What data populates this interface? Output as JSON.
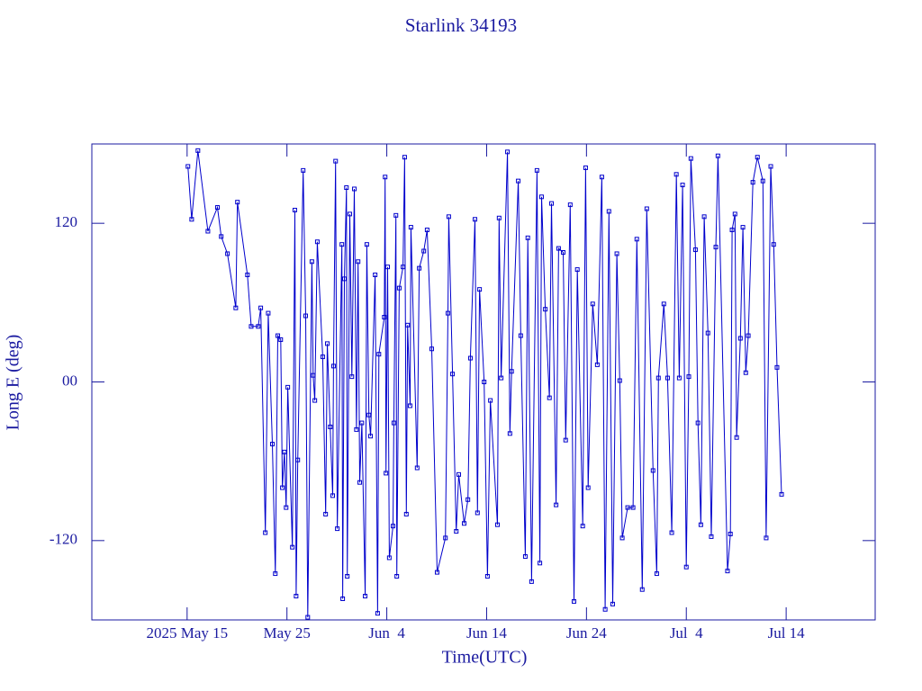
{
  "chart_data": {
    "type": "line",
    "title": "Starlink 34193",
    "xlabel": "Time(UTC)",
    "ylabel": "Long E (deg)",
    "xlim": [
      "2025-05-05T11:00",
      "2025-07-22T22:00"
    ],
    "xticks": [
      {
        "value": "2025-05-15",
        "label": "2025 May 15"
      },
      {
        "value": "2025-05-25",
        "label": "May 25"
      },
      {
        "value": "2025-06-04",
        "label": "Jun  4"
      },
      {
        "value": "2025-06-14",
        "label": "Jun 14"
      },
      {
        "value": "2025-06-24",
        "label": "Jun 24"
      },
      {
        "value": "2025-07-04",
        "label": "Jul  4"
      },
      {
        "value": "2025-07-14",
        "label": "Jul 14"
      }
    ],
    "ylim": [
      -180,
      180
    ],
    "yticks": [
      -120,
      {
        "value": 0,
        "label": "00"
      },
      120
    ],
    "series": [
      {
        "color": "#0000cc",
        "x": [
          "2025-05-15T02:00",
          "2025-05-15T11:00",
          "2025-05-16T02:00",
          "2025-05-17T02:00",
          "2025-05-18T01:00",
          "2025-05-18T10:00",
          "2025-05-19T01:00",
          "2025-05-19T21:00",
          "2025-05-20T01:00",
          "2025-05-21T01:00",
          "2025-05-21T10:00",
          "2025-05-22T03:00",
          "2025-05-22T09:00",
          "2025-05-22T20:00",
          "2025-05-23T03:00",
          "2025-05-23T13:00",
          "2025-05-23T20:00",
          "2025-05-24T02:00",
          "2025-05-24T09:00",
          "2025-05-24T13:00",
          "2025-05-24T18:00",
          "2025-05-24T22:00",
          "2025-05-25T02:00",
          "2025-05-25T13:00",
          "2025-05-25T19:00",
          "2025-05-25T22:00",
          "2025-05-26T02:00",
          "2025-05-26T15:00",
          "2025-05-26T21:00",
          "2025-05-27T02:00",
          "2025-05-27T12:00",
          "2025-05-27T15:00",
          "2025-05-27T19:00",
          "2025-05-28T01:00",
          "2025-05-28T14:00",
          "2025-05-28T21:00",
          "2025-05-29T01:00",
          "2025-05-29T08:00",
          "2025-05-29T14:00",
          "2025-05-29T16:00",
          "2025-05-29T21:00",
          "2025-05-30T01:00",
          "2025-05-30T12:00",
          "2025-05-30T14:00",
          "2025-05-30T18:00",
          "2025-05-30T23:00",
          "2025-05-31T01:00",
          "2025-05-31T07:00",
          "2025-05-31T12:00",
          "2025-05-31T18:00",
          "2025-05-31T23:00",
          "2025-06-01T03:00",
          "2025-06-01T07:00",
          "2025-06-01T12:00",
          "2025-06-01T20:00",
          "2025-06-02T00:00",
          "2025-06-02T05:00",
          "2025-06-02T09:00",
          "2025-06-02T20:00",
          "2025-06-03T02:00",
          "2025-06-03T05:00",
          "2025-06-03T18:00",
          "2025-06-03T20:00",
          "2025-06-03T22:00",
          "2025-06-04T02:00",
          "2025-06-04T06:00",
          "2025-06-04T15:00",
          "2025-06-04T17:00",
          "2025-06-04T22:00",
          "2025-06-05T00:00",
          "2025-06-05T06:00",
          "2025-06-05T15:00",
          "2025-06-05T19:00",
          "2025-06-05T23:00",
          "2025-06-06T02:00",
          "2025-06-06T08:00",
          "2025-06-06T10:00",
          "2025-06-07T01:00",
          "2025-06-07T06:00",
          "2025-06-07T17:00",
          "2025-06-08T01:00",
          "2025-06-08T12:00",
          "2025-06-09T01:00",
          "2025-06-09T21:00",
          "2025-06-10T03:00",
          "2025-06-10T05:00",
          "2025-06-10T14:00",
          "2025-06-10T23:00",
          "2025-06-11T05:00",
          "2025-06-11T18:00",
          "2025-06-12T03:00",
          "2025-06-12T09:00",
          "2025-06-12T20:00",
          "2025-06-13T02:00",
          "2025-06-13T07:00",
          "2025-06-13T18:00",
          "2025-06-14T02:00",
          "2025-06-14T09:00",
          "2025-06-15T02:00",
          "2025-06-15T06:00",
          "2025-06-15T11:00",
          "2025-06-16T02:00",
          "2025-06-16T08:00",
          "2025-06-16T12:00",
          "2025-06-17T04:00",
          "2025-06-17T10:00",
          "2025-06-17T21:00",
          "2025-06-18T03:00",
          "2025-06-18T12:00",
          "2025-06-19T01:00",
          "2025-06-19T08:00",
          "2025-06-19T12:00",
          "2025-06-19T21:00",
          "2025-06-20T07:00",
          "2025-06-20T12:00",
          "2025-06-20T23:00",
          "2025-06-21T05:00",
          "2025-06-21T16:00",
          "2025-06-21T22:00",
          "2025-06-22T09:00",
          "2025-06-22T18:00",
          "2025-06-23T02:00",
          "2025-06-23T15:00",
          "2025-06-23T22:00",
          "2025-06-24T04:00",
          "2025-06-24T15:00",
          "2025-06-25T02:00",
          "2025-06-25T13:00",
          "2025-06-25T21:00",
          "2025-06-26T06:00",
          "2025-06-26T15:00",
          "2025-06-27T01:00",
          "2025-06-27T08:00",
          "2025-06-27T14:00",
          "2025-06-28T03:00",
          "2025-06-28T16:00",
          "2025-06-29T01:00",
          "2025-06-29T14:00",
          "2025-06-30T01:00",
          "2025-06-30T16:00",
          "2025-07-01T01:00",
          "2025-07-01T05:00",
          "2025-07-01T18:00",
          "2025-07-02T03:00",
          "2025-07-02T13:00",
          "2025-07-03T00:00",
          "2025-07-03T07:00",
          "2025-07-03T15:00",
          "2025-07-04T00:00",
          "2025-07-04T06:00",
          "2025-07-04T11:00",
          "2025-07-04T22:00",
          "2025-07-05T04:00",
          "2025-07-05T11:00",
          "2025-07-05T19:00",
          "2025-07-06T04:00",
          "2025-07-06T12:00",
          "2025-07-06T23:00",
          "2025-07-07T04:00",
          "2025-07-08T03:00",
          "2025-07-08T10:00",
          "2025-07-08T14:00",
          "2025-07-08T21:00",
          "2025-07-09T01:00",
          "2025-07-09T10:00",
          "2025-07-09T16:00",
          "2025-07-09T23:00",
          "2025-07-10T05:00",
          "2025-07-10T16:00",
          "2025-07-11T03:00",
          "2025-07-11T16:00",
          "2025-07-12T00:00",
          "2025-07-12T11:00",
          "2025-07-12T18:00",
          "2025-07-13T02:00",
          "2025-07-13T13:00"
        ],
        "values": [
          163,
          123,
          175,
          114,
          132,
          110,
          97,
          56,
          136,
          81,
          42,
          42,
          56,
          -114,
          52,
          -47,
          -145,
          35,
          32,
          -80,
          -53,
          -95,
          -4,
          -125,
          130,
          -162,
          -59,
          160,
          50,
          -178,
          91,
          5,
          -14,
          106,
          19,
          -100,
          29,
          -34,
          -86,
          12,
          167,
          -111,
          104,
          -164,
          78,
          147,
          -147,
          127,
          4,
          146,
          -36,
          91,
          -76,
          -31,
          -162,
          104,
          -25,
          -41,
          81,
          -175,
          21,
          49,
          155,
          -69,
          87,
          -133,
          -109,
          -31,
          126,
          -147,
          71,
          87,
          170,
          -100,
          43,
          -18,
          117,
          -65,
          86,
          99,
          115,
          25,
          -144,
          -118,
          52,
          125,
          6,
          -113,
          -70,
          -107,
          -89,
          18,
          123,
          -99,
          70,
          0,
          -147,
          -14,
          -108,
          124,
          3,
          174,
          -39,
          8,
          152,
          35,
          -132,
          109,
          -151,
          160,
          -137,
          140,
          55,
          -12,
          135,
          -93,
          101,
          98,
          -44,
          134,
          -166,
          85,
          -109,
          162,
          -80,
          59,
          13,
          155,
          -172,
          129,
          -168,
          97,
          1,
          -118,
          -95,
          -95,
          108,
          -157,
          131,
          -67,
          -145,
          3,
          59,
          3,
          -114,
          157,
          3,
          149,
          -140,
          4,
          169,
          100,
          -31,
          -108,
          125,
          37,
          -117,
          102,
          171,
          -143,
          -115,
          115,
          127,
          -42,
          33,
          117,
          7,
          35,
          151,
          170,
          152,
          -118,
          163,
          104,
          11,
          -85
        ]
      }
    ]
  }
}
